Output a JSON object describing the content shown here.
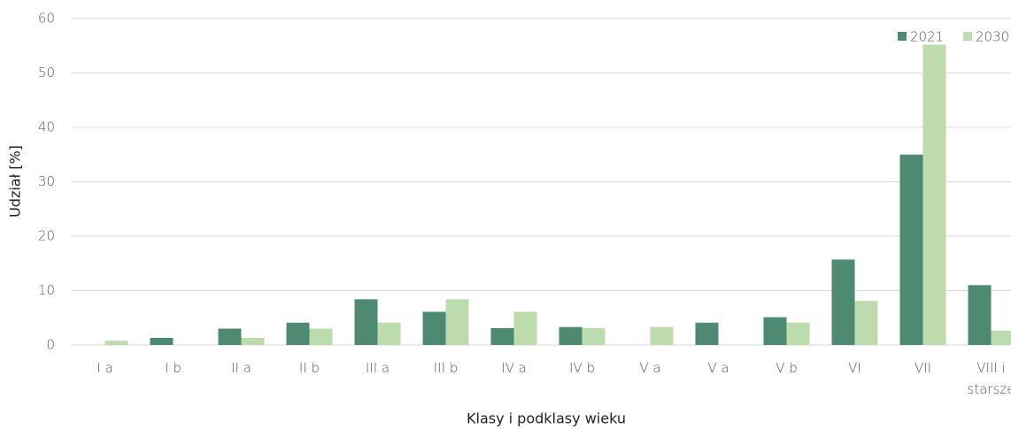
{
  "chart_data": {
    "type": "bar",
    "y_label": "Udział [%]",
    "x_label": "Klasy i podklasy wieku",
    "categories": [
      "I a",
      "I b",
      "II a",
      "II b",
      "III a",
      "III b",
      "IV a",
      "IV b",
      "V a",
      "V a",
      "V b",
      "VI",
      "VII",
      "VIII i starsze"
    ],
    "series": [
      {
        "name": "2021",
        "color": "#4e8a72",
        "values": [
          0,
          1.3,
          3,
          4.1,
          8.4,
          6.1,
          3.1,
          3.3,
          0,
          4.1,
          5.1,
          15.7,
          35,
          11
        ]
      },
      {
        "name": "2030",
        "color": "#bcdcae",
        "values": [
          0.8,
          0,
          1.3,
          3,
          4.1,
          8.4,
          6.1,
          3.1,
          3.3,
          0,
          4.1,
          8.1,
          55.2,
          2.6
        ]
      }
    ],
    "ylim": [
      0,
      60
    ],
    "yticks": [
      0,
      10,
      20,
      30,
      40,
      50,
      60
    ],
    "grid": true,
    "legend": "top-right"
  }
}
